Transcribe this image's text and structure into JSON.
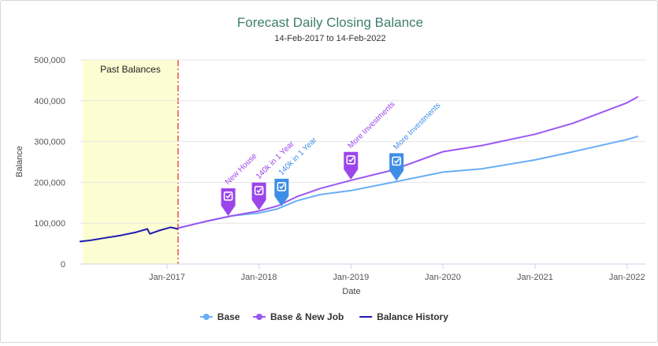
{
  "chart_data": {
    "type": "line",
    "title": "Forecast Daily Closing Balance",
    "subtitle": "14-Feb-2017 to 14-Feb-2022",
    "xlabel": "Date",
    "ylabel": "Balance",
    "x_ticks": [
      "Jan-2017",
      "Jan-2018",
      "Jan-2019",
      "Jan-2020",
      "Jan-2021",
      "Jan-2022"
    ],
    "x_range": [
      "2016-01-20",
      "2022-03-15"
    ],
    "y_ticks": [
      "0",
      "100,000",
      "200,000",
      "300,000",
      "400,000",
      "500,000"
    ],
    "ylim": [
      0,
      500000
    ],
    "grid": "horizontal",
    "legend_position": "bottom",
    "past_band": {
      "label": "Past Balances",
      "start": "2016-01-20",
      "end": "2017-02-14"
    },
    "series": [
      {
        "name": "Base",
        "color": "#6aaef5",
        "points": [
          [
            "2017-02-14",
            88000
          ],
          [
            "2017-06-01",
            104000
          ],
          [
            "2017-09-15",
            118000
          ],
          [
            "2018-01-01",
            125000
          ],
          [
            "2018-03-15",
            135000
          ],
          [
            "2018-06-01",
            155000
          ],
          [
            "2018-09-01",
            170000
          ],
          [
            "2019-01-01",
            180000
          ],
          [
            "2019-06-15",
            200000
          ],
          [
            "2020-01-01",
            225000
          ],
          [
            "2020-06-01",
            233000
          ],
          [
            "2021-01-01",
            255000
          ],
          [
            "2021-06-01",
            275000
          ],
          [
            "2022-01-01",
            305000
          ],
          [
            "2022-02-14",
            313000
          ]
        ]
      },
      {
        "name": "Base & New Job",
        "color": "#9b57f2",
        "points": [
          [
            "2017-02-14",
            88000
          ],
          [
            "2017-06-01",
            104000
          ],
          [
            "2017-09-15",
            118000
          ],
          [
            "2018-01-01",
            130000
          ],
          [
            "2018-03-15",
            142000
          ],
          [
            "2018-06-01",
            165000
          ],
          [
            "2018-09-01",
            185000
          ],
          [
            "2019-01-01",
            205000
          ],
          [
            "2019-06-15",
            230000
          ],
          [
            "2020-01-01",
            275000
          ],
          [
            "2020-06-01",
            290000
          ],
          [
            "2021-01-01",
            318000
          ],
          [
            "2021-06-01",
            345000
          ],
          [
            "2022-01-01",
            395000
          ],
          [
            "2022-02-14",
            410000
          ]
        ]
      },
      {
        "name": "Balance History",
        "color": "#1f1bb0",
        "points": [
          [
            "2016-01-20",
            55000
          ],
          [
            "2016-03-01",
            58000
          ],
          [
            "2016-05-01",
            64000
          ],
          [
            "2016-07-01",
            70000
          ],
          [
            "2016-09-01",
            78000
          ],
          [
            "2016-10-15",
            86000
          ],
          [
            "2016-10-25",
            74000
          ],
          [
            "2016-12-01",
            82000
          ],
          [
            "2017-01-15",
            90000
          ],
          [
            "2017-02-14",
            86000
          ]
        ]
      }
    ],
    "annotations": [
      {
        "label": "New House",
        "date": "2017-09-01",
        "series": "Base & New Job",
        "color": "#9b45ea"
      },
      {
        "label": "140k in 1 Year",
        "date": "2018-01-01",
        "series": "Base & New Job",
        "color": "#9b45ea"
      },
      {
        "label": "140k in 1 Year",
        "date": "2018-04-01",
        "series": "Base",
        "color": "#3d8ee6"
      },
      {
        "label": "More Investments",
        "date": "2019-01-01",
        "series": "Base & New Job",
        "color": "#9b45ea"
      },
      {
        "label": "More Investments",
        "date": "2019-07-01",
        "series": "Base",
        "color": "#3d8ee6"
      }
    ]
  }
}
